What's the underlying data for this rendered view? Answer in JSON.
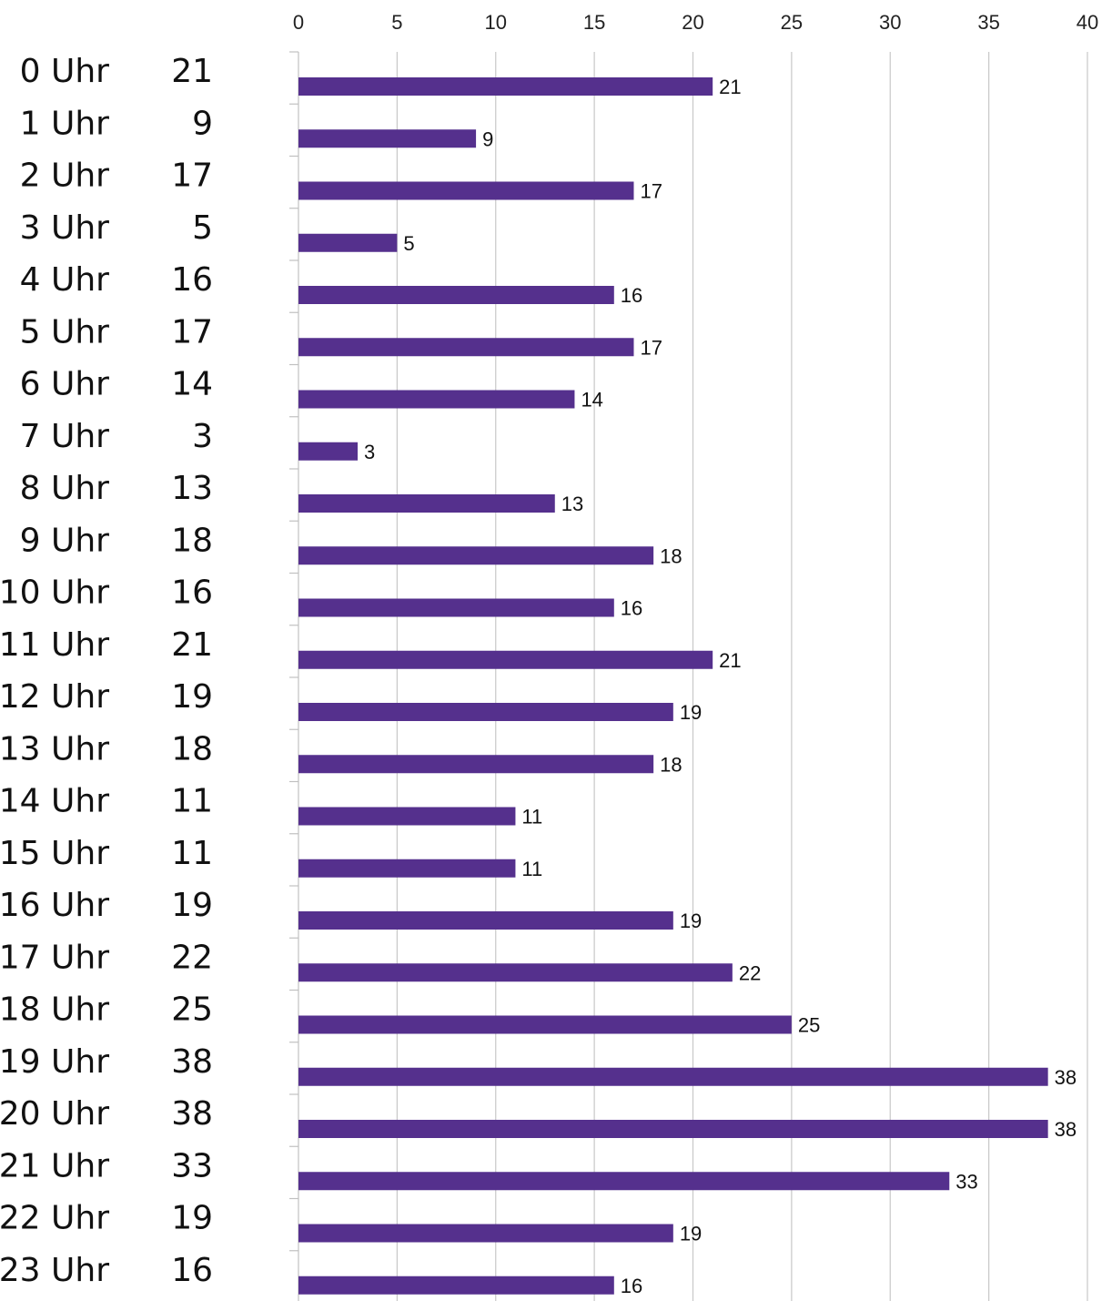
{
  "chart_data": {
    "type": "bar",
    "orientation": "horizontal",
    "title": "",
    "xlabel": "",
    "ylabel": "",
    "xlim": [
      0,
      40
    ],
    "x_ticks": [
      0,
      5,
      10,
      15,
      20,
      25,
      30,
      35,
      40
    ],
    "x_axis_position": "top",
    "grid": true,
    "legend": "none",
    "bar_color": "#55308d",
    "categories": [
      "0 Uhr",
      "1 Uhr",
      "2 Uhr",
      "3 Uhr",
      "4 Uhr",
      "5 Uhr",
      "6 Uhr",
      "7 Uhr",
      "8 Uhr",
      "9 Uhr",
      "10 Uhr",
      "11 Uhr",
      "12 Uhr",
      "13 Uhr",
      "14 Uhr",
      "15 Uhr",
      "16 Uhr",
      "17 Uhr",
      "18 Uhr",
      "19 Uhr",
      "20 Uhr",
      "21 Uhr",
      "22 Uhr",
      "23 Uhr"
    ],
    "values": [
      21,
      9,
      17,
      5,
      16,
      17,
      14,
      3,
      13,
      18,
      16,
      21,
      19,
      18,
      11,
      11,
      19,
      22,
      25,
      38,
      38,
      33,
      19,
      16
    ]
  }
}
